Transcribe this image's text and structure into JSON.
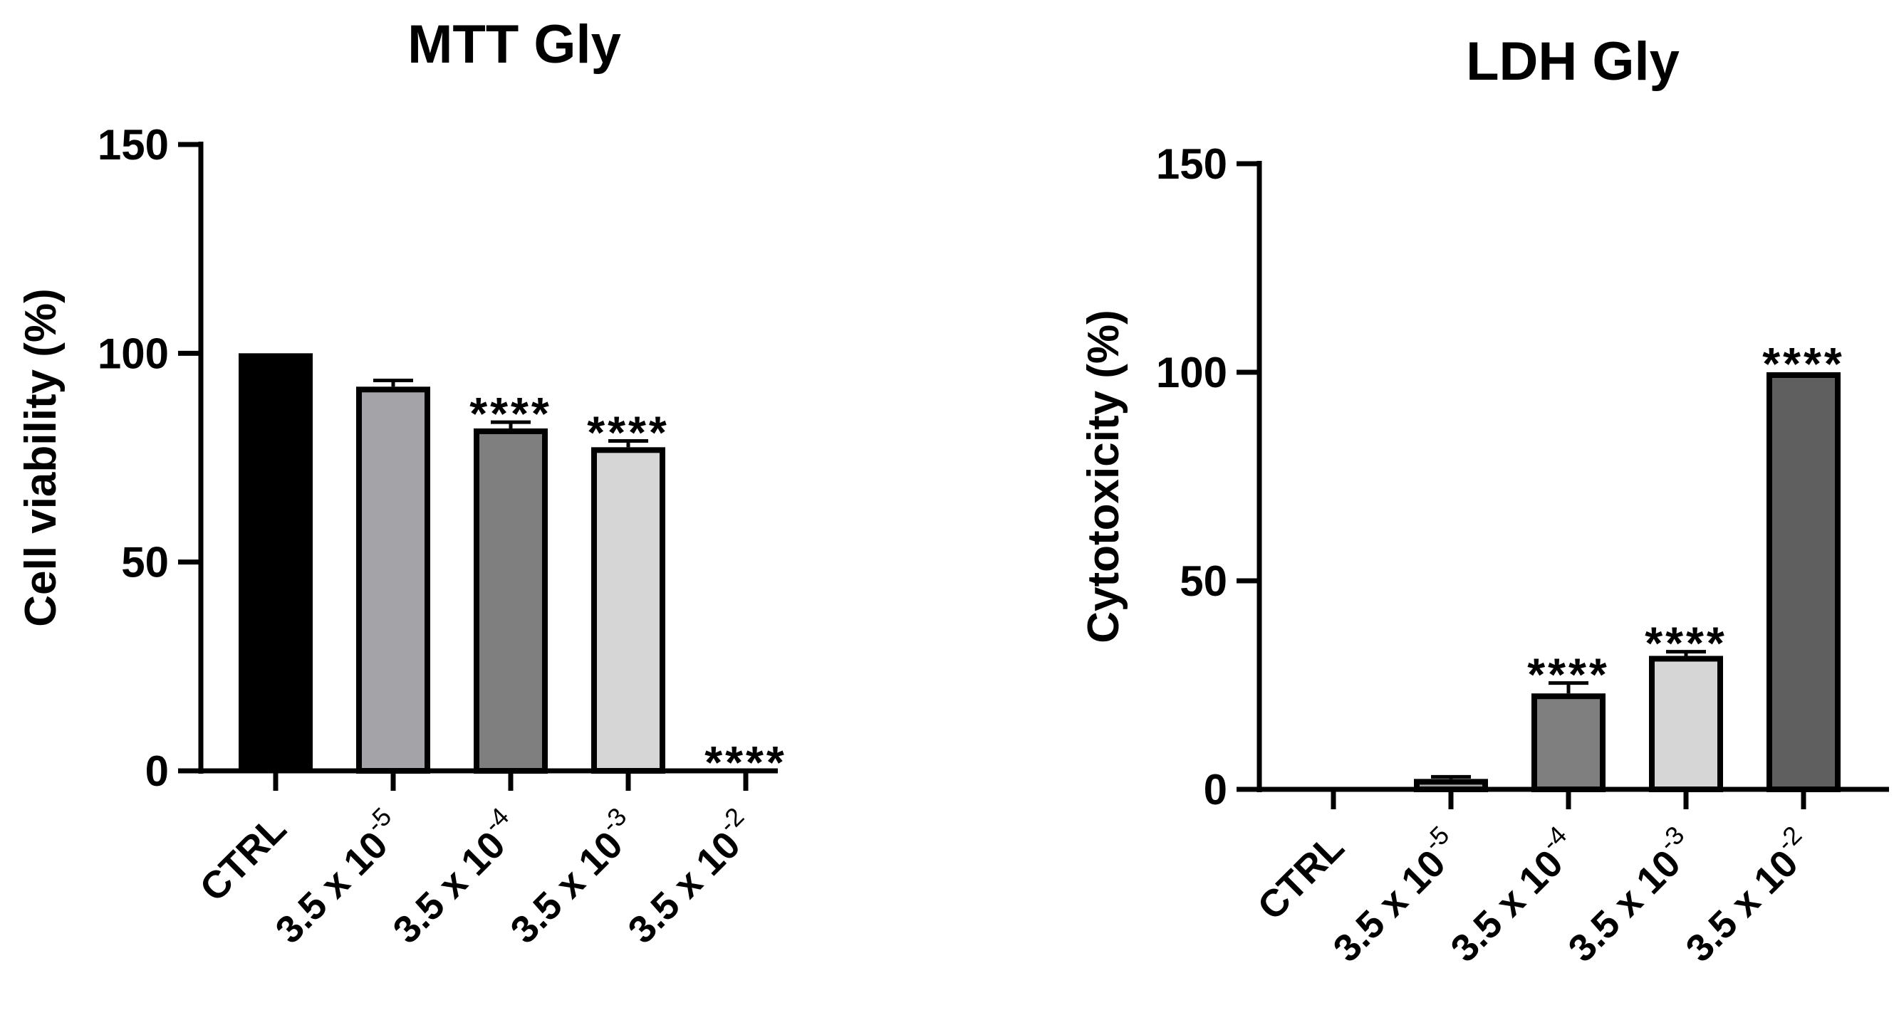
{
  "chart_data": [
    {
      "type": "bar",
      "title": "MTT Gly",
      "xlabel": "",
      "ylabel": "Cell viability (%)",
      "ylim": [
        0,
        150
      ],
      "yticks": [
        "0",
        "50",
        "100",
        "150"
      ],
      "categories": [
        {
          "label": "CTRL"
        },
        {
          "label": "3.5 x 10",
          "exp": "-5"
        },
        {
          "label": "3.5 x 10",
          "exp": "-4"
        },
        {
          "label": "3.5 x 10",
          "exp": "-3"
        },
        {
          "label": "3.5 x 10",
          "exp": "-2"
        }
      ],
      "values": [
        100,
        92,
        82,
        77.5,
        0
      ],
      "errors": [
        0,
        1.5,
        1.5,
        1.5,
        0
      ],
      "colors": [
        "#000000",
        "#a3a3a8",
        "#7f7f7f",
        "#d6d6d6",
        "#ffffff"
      ],
      "annotations": [
        "",
        "",
        "****",
        "****",
        "****"
      ]
    },
    {
      "type": "bar",
      "title": "LDH Gly",
      "xlabel": "",
      "ylabel": "Cytotoxicity (%)",
      "ylim": [
        0,
        150
      ],
      "yticks": [
        "0",
        "50",
        "100",
        "150"
      ],
      "categories": [
        {
          "label": "CTRL"
        },
        {
          "label": "3.5 x 10",
          "exp": "-5"
        },
        {
          "label": "3.5 x 10",
          "exp": "-4"
        },
        {
          "label": "3.5 x 10",
          "exp": "-3"
        },
        {
          "label": "3.5 x 10",
          "exp": "-2"
        }
      ],
      "values": [
        0,
        2.5,
        23,
        32,
        100
      ],
      "errors": [
        0,
        0.5,
        2.5,
        1,
        0
      ],
      "colors": [
        "#ffffff",
        "#a3a3a8",
        "#7f7f7f",
        "#d6d6d6",
        "#5f5f5f"
      ],
      "annotations": [
        "",
        "",
        "****",
        "****",
        "****"
      ]
    }
  ]
}
